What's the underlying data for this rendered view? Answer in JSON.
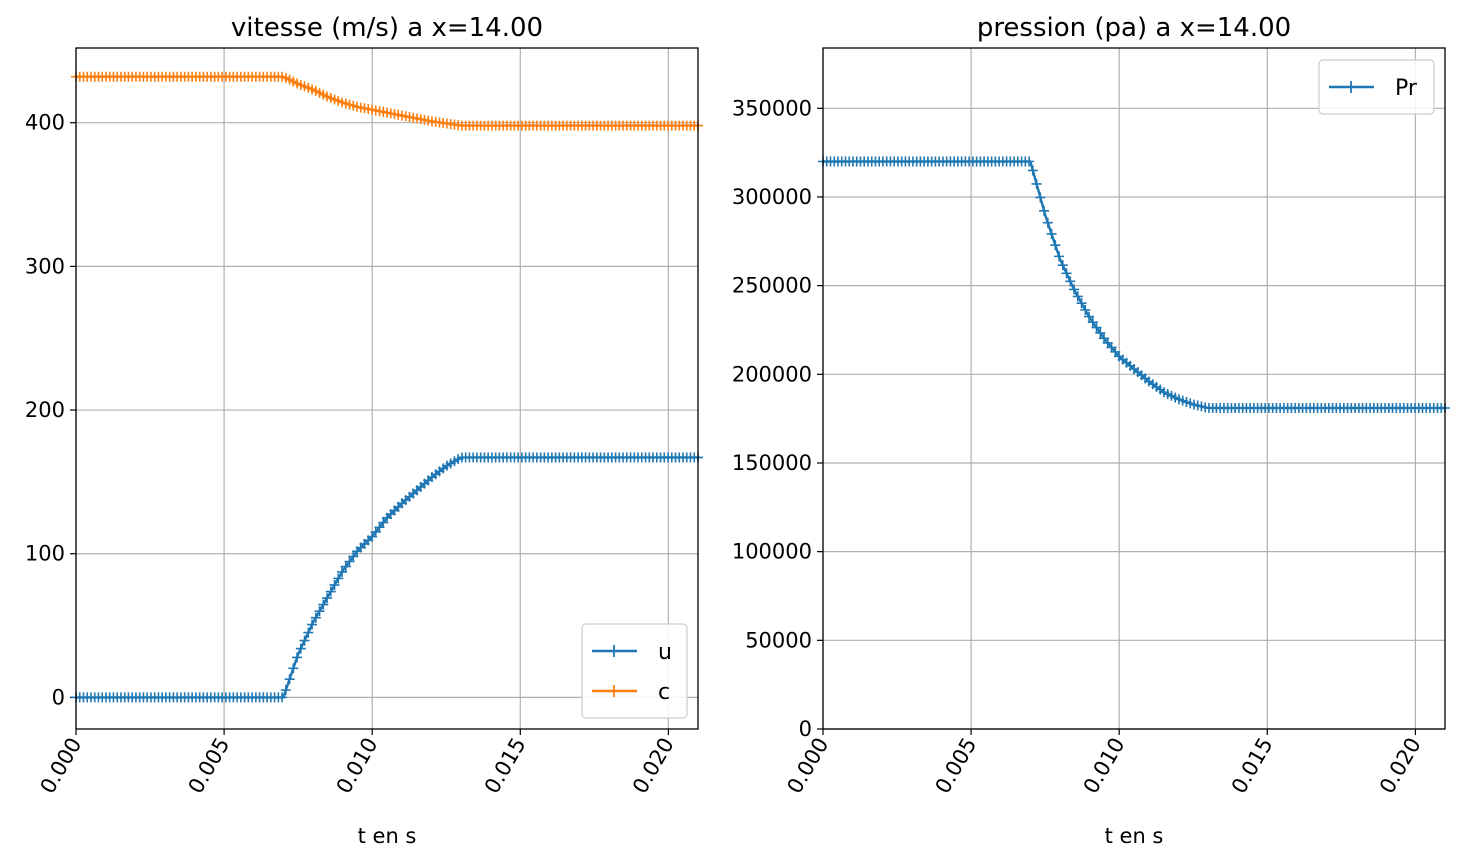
{
  "chart_data": [
    {
      "type": "line",
      "title": "vitesse (m/s) a x=14.00",
      "xlabel": "t en s",
      "ylabel": "",
      "xlim": [
        0,
        0.021
      ],
      "ylim": [
        -22,
        452
      ],
      "x_ticks": [
        "0.000",
        "0.005",
        "0.010",
        "0.015",
        "0.020"
      ],
      "y_ticks": [
        "0",
        "100",
        "200",
        "300",
        "400"
      ],
      "grid": true,
      "legend_position": "lower right",
      "marker": "+",
      "series": [
        {
          "name": "u",
          "color": "#1f77b4",
          "x": [
            0,
            0.007,
            0.0075,
            0.008,
            0.0085,
            0.009,
            0.0095,
            0.01,
            0.0105,
            0.011,
            0.0115,
            0.012,
            0.0125,
            0.013,
            0.021
          ],
          "y": [
            0,
            0,
            30,
            52,
            70,
            88,
            102,
            112,
            125,
            135,
            144,
            153,
            161,
            167,
            167
          ]
        },
        {
          "name": "c",
          "color": "#ff7f0e",
          "x": [
            0,
            0.007,
            0.0075,
            0.008,
            0.0085,
            0.009,
            0.0095,
            0.01,
            0.011,
            0.012,
            0.013,
            0.021
          ],
          "y": [
            432,
            432,
            427,
            423,
            418,
            414,
            411,
            409,
            405,
            401,
            398,
            398
          ]
        }
      ]
    },
    {
      "type": "line",
      "title": "pression (pa) a x=14.00",
      "xlabel": "t en s",
      "ylabel": "",
      "xlim": [
        0,
        0.021
      ],
      "ylim": [
        0,
        384000
      ],
      "x_ticks": [
        "0.000",
        "0.005",
        "0.010",
        "0.015",
        "0.020"
      ],
      "y_ticks": [
        "0",
        "50000",
        "100000",
        "150000",
        "200000",
        "250000",
        "300000",
        "350000"
      ],
      "grid": true,
      "legend_position": "upper right",
      "marker": "+",
      "series": [
        {
          "name": "Pr",
          "color": "#1f77b4",
          "x": [
            0,
            0.007,
            0.0075,
            0.008,
            0.0085,
            0.009,
            0.0095,
            0.01,
            0.0105,
            0.011,
            0.0115,
            0.012,
            0.0125,
            0.013,
            0.021
          ],
          "y": [
            320000,
            320000,
            290000,
            265000,
            247000,
            232000,
            220000,
            210000,
            203000,
            196000,
            190000,
            186000,
            183000,
            181000,
            181000
          ]
        }
      ]
    }
  ]
}
